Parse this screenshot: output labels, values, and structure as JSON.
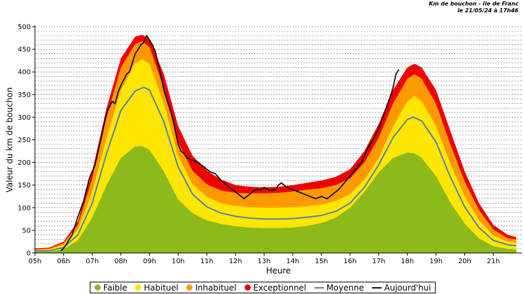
{
  "header": {
    "line1": "Km de bouchon - Ile de Franc",
    "line2": "le 21/05/24 à 17h46"
  },
  "colors": {
    "faible": "#8dba1a",
    "habituel": "#ffe600",
    "inhabituel": "#ff9900",
    "exceptionnel": "#ee0000",
    "moyenne": "#5a7fa8",
    "aujourdhui": "#111111"
  },
  "chart_data": {
    "type": "area",
    "title": "",
    "xlabel": "Heure",
    "ylabel": "Valeur du  km de bouchon",
    "ylim": [
      0,
      500
    ],
    "yticks": [
      0,
      50,
      100,
      150,
      200,
      250,
      300,
      350,
      400,
      450,
      500
    ],
    "xlim": [
      5,
      22
    ],
    "xticks": [
      "05h",
      "06h",
      "07h",
      "08h",
      "09h",
      "10h",
      "11h",
      "12h",
      "13h",
      "14h",
      "15h",
      "16h",
      "17h",
      "18h",
      "19h",
      "20h",
      "21h"
    ],
    "grid": true,
    "legend_position": "bottom",
    "series": [
      {
        "name": "Exceptionnel",
        "kind": "band",
        "x": [
          5.0,
          5.5,
          6.0,
          6.5,
          7.0,
          7.5,
          8.0,
          8.5,
          8.75,
          9.0,
          9.5,
          10.0,
          10.5,
          11.0,
          11.5,
          12.0,
          12.5,
          13.0,
          13.5,
          14.0,
          14.5,
          15.0,
          15.5,
          16.0,
          16.5,
          17.0,
          17.5,
          18.0,
          18.25,
          18.5,
          19.0,
          19.5,
          20.0,
          20.5,
          21.0,
          21.5,
          21.8
        ],
        "values": [
          10,
          12,
          25,
          70,
          180,
          320,
          430,
          478,
          482,
          472,
          395,
          280,
          215,
          182,
          162,
          150,
          146,
          145,
          146,
          150,
          155,
          160,
          168,
          185,
          225,
          285,
          360,
          410,
          418,
          410,
          360,
          270,
          180,
          110,
          62,
          40,
          35
        ]
      },
      {
        "name": "Inhabituel",
        "kind": "band",
        "x": [
          5.0,
          5.5,
          6.0,
          6.5,
          7.0,
          7.5,
          8.0,
          8.5,
          8.75,
          9.0,
          9.5,
          10.0,
          10.5,
          11.0,
          11.5,
          12.0,
          12.5,
          13.0,
          13.5,
          14.0,
          14.5,
          15.0,
          15.5,
          16.0,
          16.5,
          17.0,
          17.5,
          18.0,
          18.25,
          18.5,
          19.0,
          19.5,
          20.0,
          20.5,
          21.0,
          21.5,
          21.8
        ],
        "values": [
          8,
          10,
          22,
          62,
          165,
          300,
          410,
          462,
          468,
          455,
          365,
          245,
          182,
          152,
          138,
          133,
          132,
          132,
          133,
          136,
          140,
          143,
          150,
          165,
          200,
          255,
          330,
          385,
          395,
          385,
          330,
          240,
          158,
          95,
          52,
          33,
          30
        ]
      },
      {
        "name": "Habituel",
        "kind": "band",
        "x": [
          5.0,
          5.5,
          6.0,
          6.5,
          7.0,
          7.5,
          8.0,
          8.5,
          8.75,
          9.0,
          9.5,
          10.0,
          10.5,
          11.0,
          11.5,
          12.0,
          12.5,
          13.0,
          13.5,
          14.0,
          14.5,
          15.0,
          15.5,
          16.0,
          16.5,
          17.0,
          17.5,
          18.0,
          18.25,
          18.5,
          19.0,
          19.5,
          20.0,
          20.5,
          21.0,
          21.5,
          21.8
        ],
        "values": [
          6,
          8,
          18,
          52,
          135,
          255,
          360,
          420,
          428,
          418,
          330,
          215,
          152,
          124,
          110,
          104,
          101,
          100,
          100,
          101,
          103,
          107,
          115,
          130,
          162,
          210,
          280,
          335,
          347,
          335,
          280,
          198,
          125,
          72,
          38,
          25,
          23
        ]
      },
      {
        "name": "Faible",
        "kind": "band",
        "x": [
          5.0,
          5.5,
          6.0,
          6.5,
          7.0,
          7.5,
          8.0,
          8.5,
          8.75,
          9.0,
          9.5,
          10.0,
          10.5,
          11.0,
          11.5,
          12.0,
          12.5,
          13.0,
          13.5,
          14.0,
          14.5,
          15.0,
          15.5,
          16.0,
          16.5,
          17.0,
          17.5,
          18.0,
          18.25,
          18.5,
          19.0,
          19.5,
          20.0,
          20.5,
          21.0,
          21.5,
          21.8
        ],
        "values": [
          2,
          3,
          8,
          28,
          78,
          150,
          210,
          235,
          236,
          228,
          180,
          118,
          88,
          72,
          64,
          59,
          56,
          55,
          55,
          56,
          60,
          66,
          78,
          100,
          135,
          178,
          210,
          222,
          220,
          210,
          170,
          112,
          65,
          32,
          15,
          9,
          8
        ]
      },
      {
        "name": "Moyenne",
        "kind": "line",
        "x": [
          5.0,
          5.5,
          6.0,
          6.5,
          7.0,
          7.5,
          8.0,
          8.5,
          8.8,
          9.0,
          9.5,
          10.0,
          10.5,
          11.0,
          11.5,
          12.0,
          12.5,
          13.0,
          13.5,
          14.0,
          14.5,
          15.0,
          15.5,
          16.0,
          16.5,
          17.0,
          17.5,
          18.0,
          18.2,
          18.5,
          19.0,
          19.5,
          20.0,
          20.5,
          21.0,
          21.5,
          21.8
        ],
        "values": [
          4,
          5,
          12,
          40,
          110,
          220,
          315,
          358,
          366,
          360,
          290,
          190,
          130,
          102,
          88,
          81,
          77,
          75,
          75,
          76,
          79,
          83,
          92,
          110,
          145,
          195,
          255,
          295,
          300,
          292,
          245,
          168,
          102,
          56,
          28,
          18,
          16
        ]
      },
      {
        "name": "Aujourd'hui",
        "kind": "line",
        "x": [
          5.9,
          6.0,
          6.1,
          6.3,
          6.5,
          6.7,
          6.9,
          7.0,
          7.1,
          7.3,
          7.5,
          7.7,
          7.8,
          7.9,
          8.0,
          8.2,
          8.3,
          8.4,
          8.5,
          8.6,
          8.7,
          8.8,
          8.9,
          9.0,
          9.1,
          9.2,
          9.3,
          9.4,
          9.5,
          9.6,
          9.7,
          9.8,
          9.9,
          10.0,
          10.1,
          10.2,
          10.3,
          10.5,
          10.7,
          10.9,
          11.1,
          11.3,
          11.5,
          11.7,
          11.9,
          12.1,
          12.2,
          12.3,
          12.5,
          12.7,
          12.8,
          12.9,
          13.0,
          13.2,
          13.4,
          13.5,
          13.6,
          13.8,
          14.0,
          14.2,
          14.4,
          14.6,
          14.8,
          15.0,
          15.2,
          15.4,
          15.6,
          15.8,
          16.0,
          16.2,
          16.4,
          16.6,
          16.8,
          17.0,
          17.2,
          17.4,
          17.5,
          17.6,
          17.7
        ],
        "values": [
          5,
          10,
          20,
          40,
          80,
          115,
          165,
          180,
          195,
          250,
          310,
          335,
          330,
          355,
          370,
          395,
          400,
          420,
          440,
          450,
          460,
          465,
          480,
          470,
          460,
          445,
          420,
          390,
          360,
          340,
          320,
          300,
          270,
          240,
          225,
          220,
          210,
          205,
          200,
          190,
          180,
          175,
          160,
          150,
          140,
          130,
          125,
          120,
          130,
          140,
          140,
          140,
          145,
          138,
          140,
          150,
          155,
          145,
          140,
          135,
          130,
          125,
          120,
          125,
          120,
          130,
          140,
          155,
          170,
          185,
          200,
          230,
          250,
          275,
          310,
          345,
          365,
          395,
          405
        ]
      }
    ]
  },
  "legend": {
    "faible": "Faible",
    "habituel": "Habituel",
    "inhabituel": "Inhabituel",
    "exceptionnel": "Exceptionnel",
    "moyenne": "Moyenne",
    "aujourdhui": "Aujourd'hui"
  }
}
